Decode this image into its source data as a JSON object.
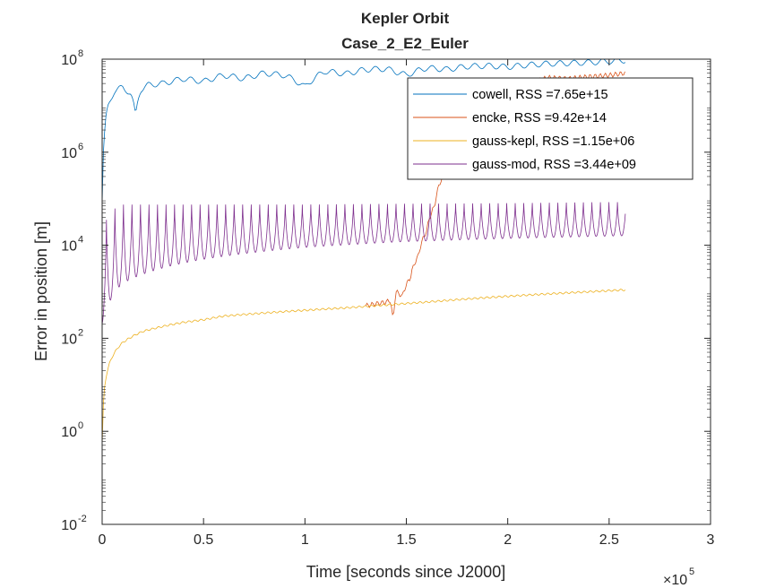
{
  "chart_data": {
    "type": "line",
    "title": "Kepler Orbit",
    "subtitle": "Case_2_E2_Euler",
    "xlabel": "Time [seconds since J2000]",
    "ylabel": "Error in position [m]",
    "x_scale_label": "×10",
    "x_scale_exponent": "5",
    "xlim": [
      0,
      300000
    ],
    "ylim": [
      0.01,
      100000000
    ],
    "yscale": "log",
    "grid": false,
    "legend_position": "top-right",
    "x_tick_labels": [
      "0",
      "0.5",
      "1",
      "1.5",
      "2",
      "2.5",
      "3"
    ],
    "x_tick_values": [
      0,
      50000,
      100000,
      150000,
      200000,
      250000,
      300000
    ],
    "y_tick_exponents": [
      "-2",
      "0",
      "2",
      "4",
      "6",
      "8"
    ],
    "y_tick_values": [
      0.01,
      1,
      100,
      10000,
      1000000,
      100000000
    ],
    "series": [
      {
        "name": "cowell, RSS =7.65e+15",
        "color": "#0072BD",
        "x": [
          0,
          1000,
          3000,
          6000,
          10000,
          14000,
          16500,
          19000,
          23000,
          30000,
          40000,
          50000,
          60000,
          70000,
          80000,
          90000,
          100000,
          110000,
          120000,
          130000,
          140000,
          150000,
          160000,
          170000,
          180000,
          190000,
          200000,
          210000,
          220000,
          230000,
          240000,
          250000,
          258000
        ],
        "y": [
          80000,
          1500000,
          10000000,
          20000000,
          25000000,
          18000000,
          5500000,
          22000000,
          28000000,
          30000000,
          38000000,
          33000000,
          45000000,
          38000000,
          50000000,
          45000000,
          25000000,
          55000000,
          48000000,
          60000000,
          62000000,
          45000000,
          65000000,
          60000000,
          70000000,
          72000000,
          68000000,
          75000000,
          80000000,
          82000000,
          85000000,
          90000000,
          95000000
        ]
      },
      {
        "name": "encke, RSS =9.42e+14",
        "color": "#D95319",
        "x": [
          130000,
          135000,
          140000,
          142000,
          143500,
          145000,
          148000,
          152000,
          156000,
          160000,
          164000,
          168000,
          172000,
          176000,
          180000,
          190000,
          200000,
          210000,
          220000,
          230000,
          240000,
          250000,
          258000
        ],
        "y": [
          500,
          550,
          600,
          650,
          200,
          1000,
          800,
          2000,
          6000,
          20000,
          70000,
          300000,
          1200000,
          6000000,
          9000000,
          18000000,
          25000000,
          30000000,
          40000000,
          38000000,
          42000000,
          45000000,
          50000000
        ]
      },
      {
        "name": "gauss-kepl, RSS =1.15e+06",
        "color": "#EDB120",
        "x": [
          0,
          500,
          2000,
          5000,
          10000,
          20000,
          30000,
          40000,
          50000,
          60000,
          80000,
          100000,
          120000,
          140000,
          160000,
          180000,
          200000,
          220000,
          240000,
          258000
        ],
        "y": [
          0.5,
          3,
          15,
          40,
          80,
          140,
          180,
          220,
          250,
          300,
          350,
          400,
          450,
          520,
          600,
          700,
          800,
          900,
          1000,
          1100
        ]
      },
      {
        "name": "gauss-mod, RSS =3.44e+09",
        "color": "#7E2F8E",
        "period": 4200,
        "x": [
          0,
          3000,
          10000,
          50000,
          100000,
          150000,
          200000,
          258000
        ],
        "y_peak": [
          1000,
          50000,
          75000,
          75000,
          75000,
          78000,
          80000,
          85000
        ],
        "y_trough": [
          200,
          500,
          1500,
          5000,
          9000,
          12000,
          14000,
          16000
        ]
      }
    ]
  }
}
